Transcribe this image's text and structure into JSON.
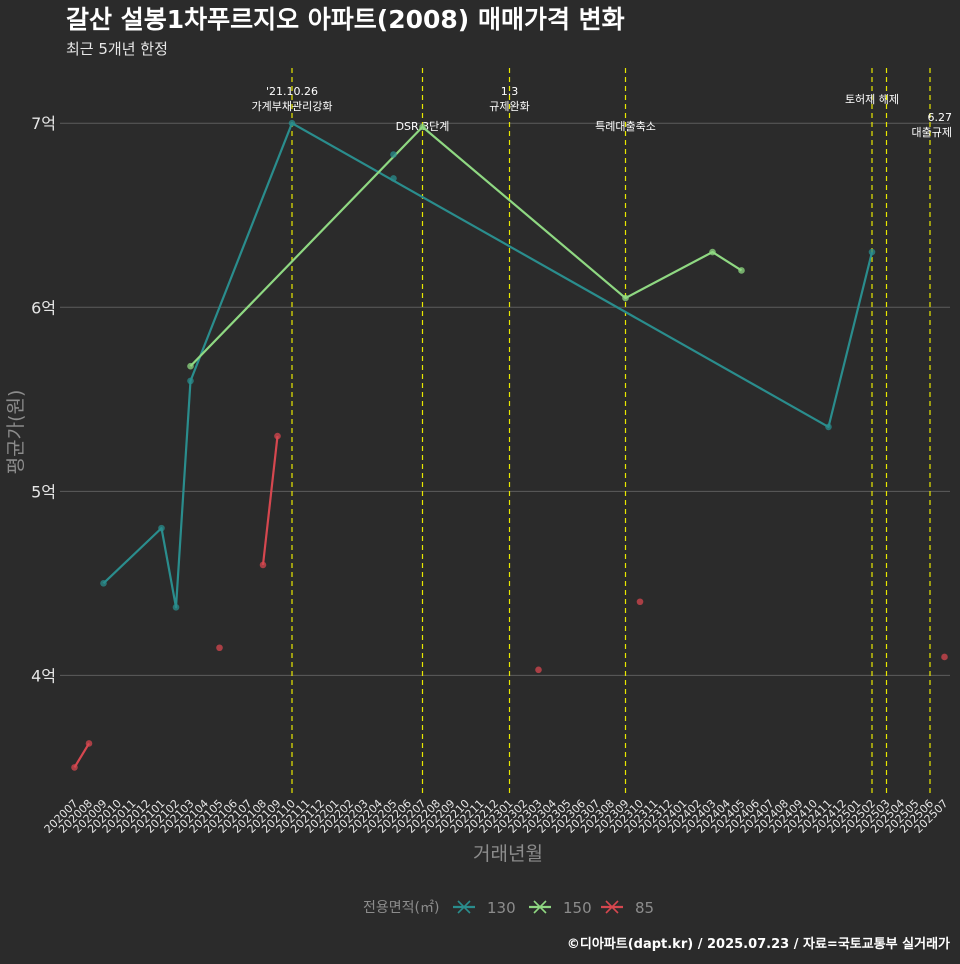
{
  "colors": {
    "background": "#2b2b2b",
    "grid": "#5c5c5c",
    "text": "#ffffff",
    "axis_title": "#8c8c8c",
    "tick_label": "#e6e6e6",
    "event_line": "#e8e800",
    "series_130": "#2a8d8d",
    "series_150": "#8fd882",
    "series_85": "#d6474f"
  },
  "chart_data": {
    "type": "line",
    "title": "갈산 설봉1차푸르지오 아파트(2008) 매매가격 변화",
    "subtitle": "최근 5개년 한정",
    "xlabel": "거래년월",
    "ylabel": "평균가(원)",
    "ylim": [
      3.35,
      7.3
    ],
    "y_ticks": [
      {
        "value": 4,
        "label": "4억"
      },
      {
        "value": 5,
        "label": "5억"
      },
      {
        "value": 6,
        "label": "6억"
      },
      {
        "value": 7,
        "label": "7억"
      }
    ],
    "grid": true,
    "x_categories": [
      "202007",
      "202008",
      "202009",
      "202010",
      "202011",
      "202012",
      "202101",
      "202102",
      "202103",
      "202104",
      "202105",
      "202106",
      "202107",
      "202108",
      "202109",
      "202110",
      "202111",
      "202112",
      "202201",
      "202202",
      "202203",
      "202204",
      "202205",
      "202206",
      "202207",
      "202208",
      "202209",
      "202210",
      "202211",
      "202212",
      "202301",
      "202302",
      "202303",
      "202304",
      "202305",
      "202306",
      "202307",
      "202308",
      "202309",
      "202310",
      "202311",
      "202312",
      "202401",
      "202402",
      "202403",
      "202404",
      "202405",
      "202406",
      "202407",
      "202408",
      "202409",
      "202410",
      "202411",
      "202412",
      "202501",
      "202502",
      "202503",
      "202504",
      "202505",
      "202506",
      "202507"
    ],
    "events": [
      {
        "x": "202110",
        "lines": [
          "'21.10.26",
          "가계부채관리강화"
        ],
        "top": true
      },
      {
        "x": "202207",
        "lines": [
          "DSR 3단계"
        ],
        "top": false
      },
      {
        "x": "202301",
        "lines": [
          "1.3",
          "규제완화"
        ],
        "top": true
      },
      {
        "x": "202309",
        "lines": [
          "특례대출축소"
        ],
        "top": false
      },
      {
        "x": "202502",
        "lines": [
          "토허제 해제"
        ],
        "top": true
      },
      {
        "x": "202503",
        "lines": [],
        "top": true
      },
      {
        "x": "202506",
        "lines": [
          "6.27",
          "대출규제"
        ],
        "top": true
      }
    ],
    "series": [
      {
        "name": "130",
        "points": [
          {
            "x": "202009",
            "y": 4.5
          },
          {
            "x": "202101",
            "y": 4.8
          },
          {
            "x": "202102",
            "y": 4.37
          },
          {
            "x": "202103",
            "y": 5.6
          },
          {
            "x": "202110",
            "y": 7.0
          },
          {
            "x": "202411",
            "y": 5.35
          },
          {
            "x": "202502",
            "y": 6.3
          }
        ],
        "extra_points": [
          {
            "x": "202205",
            "y": 6.7
          },
          {
            "x": "202205",
            "y": 6.83
          }
        ]
      },
      {
        "name": "150",
        "points": [
          {
            "x": "202103",
            "y": 5.68
          },
          {
            "x": "202207",
            "y": 6.98
          },
          {
            "x": "202309",
            "y": 6.05
          },
          {
            "x": "202403",
            "y": 6.3
          },
          {
            "x": "202405",
            "y": 6.2
          }
        ],
        "extra_points": []
      },
      {
        "name": "85",
        "segments": [
          [
            {
              "x": "202007",
              "y": 3.5
            },
            {
              "x": "202008",
              "y": 3.63
            }
          ],
          [
            {
              "x": "202108",
              "y": 4.6
            },
            {
              "x": "202109",
              "y": 5.3
            }
          ]
        ],
        "extra_points": [
          {
            "x": "202105",
            "y": 4.15
          },
          {
            "x": "202303",
            "y": 4.03
          },
          {
            "x": "202310",
            "y": 4.4
          },
          {
            "x": "202507",
            "y": 4.1
          }
        ]
      }
    ],
    "legend": {
      "title": "전용면적(㎡)",
      "items": [
        "130",
        "150",
        "85"
      ],
      "position": "bottom"
    },
    "caption": "©디아파트(dapt.kr) / 2025.07.23 / 자료=국토교통부 실거래가"
  }
}
